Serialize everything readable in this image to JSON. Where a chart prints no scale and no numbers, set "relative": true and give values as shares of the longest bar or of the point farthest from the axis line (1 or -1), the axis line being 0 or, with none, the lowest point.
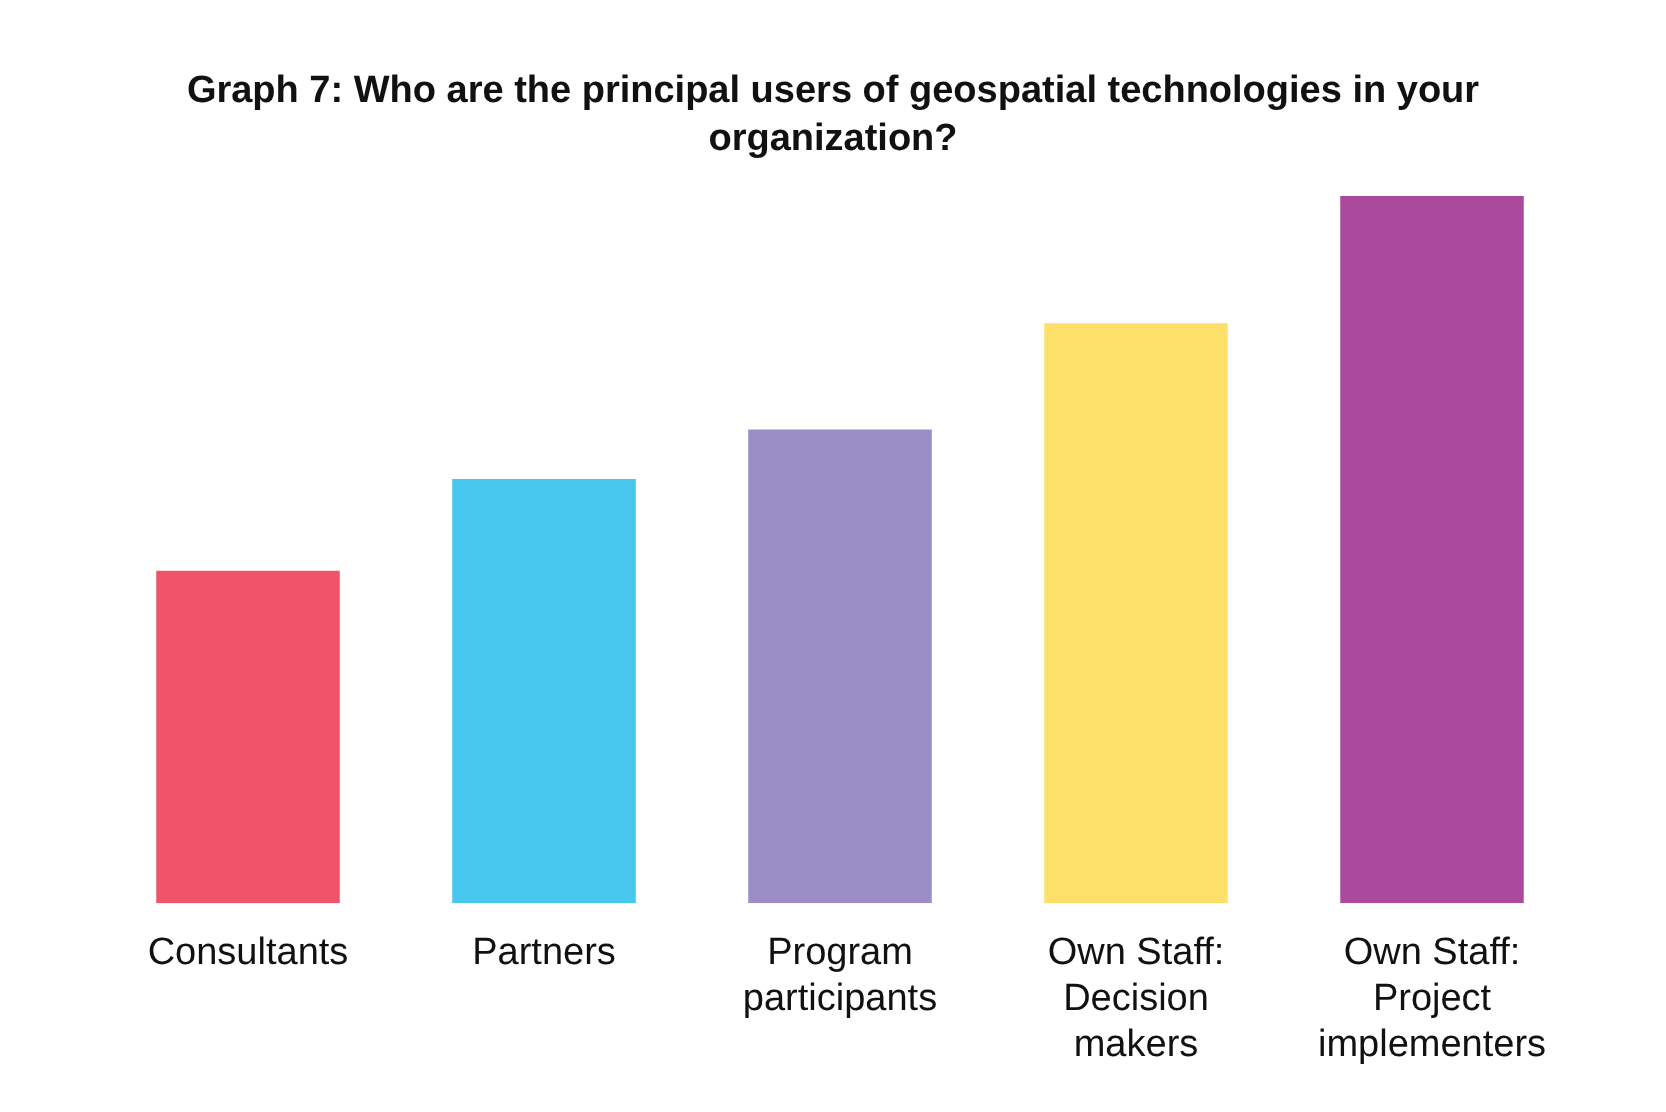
{
  "chart_data": {
    "type": "bar",
    "title": "Graph 7: Who are the principal users of geospatial technologies in your organization?",
    "categories": [
      "Consultants",
      "Partners",
      "Program participants",
      "Own Staff: Decision makers",
      "Own Staff: Project implementers"
    ],
    "values": [
      0.47,
      0.6,
      0.67,
      0.82,
      1
    ],
    "colors": [
      "#f0546b",
      "#47c6ee",
      "#9b8dc5",
      "#fde06a",
      "#ab4a9c"
    ],
    "relative": true,
    "grid": false,
    "legend": false
  }
}
